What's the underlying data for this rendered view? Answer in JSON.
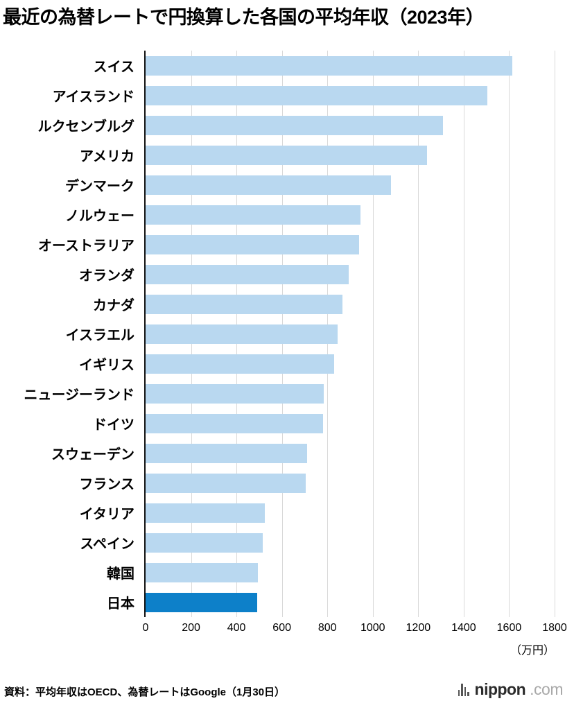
{
  "title": "最近の為替レートで円換算した各国の平均年収（2023年）",
  "chart_data": {
    "type": "bar",
    "orientation": "horizontal",
    "title": "最近の為替レートで円換算した各国の平均年収（2023年）",
    "categories": [
      "スイス",
      "アイスランド",
      "ルクセンブルグ",
      "アメリカ",
      "デンマーク",
      "ノルウェー",
      "オーストラリア",
      "オランダ",
      "カナダ",
      "イスラエル",
      "イギリス",
      "ニュージーランド",
      "ドイツ",
      "スウェーデン",
      "フランス",
      "イタリア",
      "スペイン",
      "韓国",
      "日本"
    ],
    "values": [
      1615,
      1505,
      1310,
      1240,
      1080,
      945,
      940,
      895,
      865,
      845,
      830,
      785,
      780,
      710,
      705,
      525,
      515,
      495,
      490
    ],
    "xlim": [
      0,
      1800
    ],
    "xticks": [
      0,
      200,
      400,
      600,
      800,
      1000,
      1200,
      1400,
      1600,
      1800
    ],
    "unit_label": "（万円）",
    "grid": true,
    "legend": "none",
    "bar_color": "#b9d8f0",
    "highlight_color": "#0d80c9",
    "highlight_category": "日本"
  },
  "footer": {
    "source": "資料：平均年収はOECD、為替レートはGoogle（1月30日）",
    "logo": {
      "name": "nippon",
      "tld": ".com"
    }
  }
}
